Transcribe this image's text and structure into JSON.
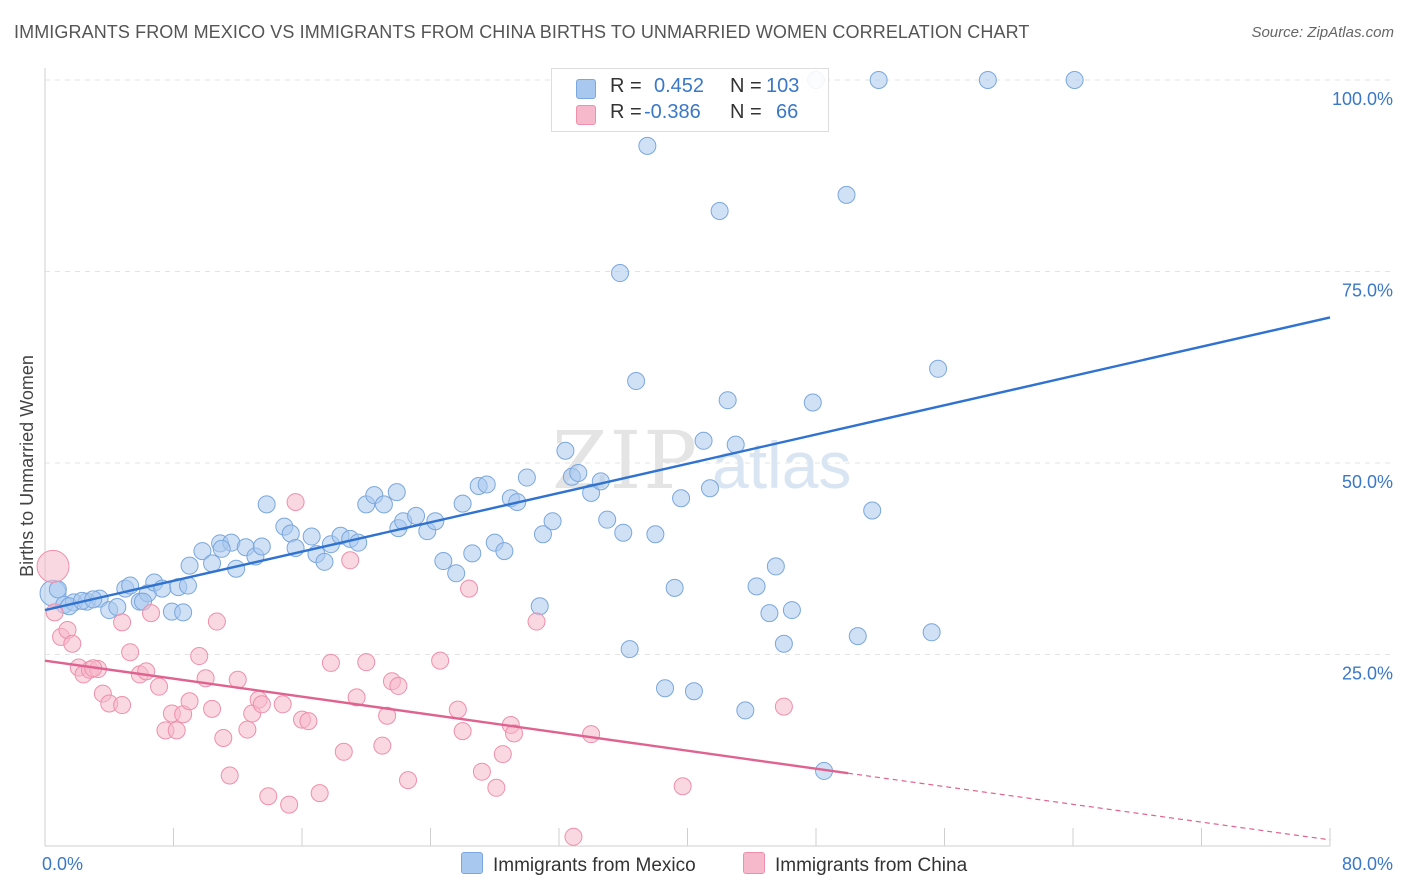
{
  "title": "IMMIGRANTS FROM MEXICO VS IMMIGRANTS FROM CHINA BIRTHS TO UNMARRIED WOMEN CORRELATION CHART",
  "source": "Source: ZipAtlas.com",
  "watermark": {
    "zip": "ZIP",
    "atlas": "atlas"
  },
  "legend": {
    "r_label": "R =",
    "n_label": "N =",
    "mexico": {
      "r": "0.452",
      "n": "103"
    },
    "china": {
      "r": "-0.386",
      "n": "66"
    }
  },
  "colors": {
    "mexico_fill": "#a9c8ef",
    "mexico_stroke": "#7aa7dc",
    "mexico_line": "#2f72d0",
    "china_fill": "#f6b8cb",
    "china_stroke": "#ee8fab",
    "china_line": "#e0628f",
    "tick_label": "#3a78c6",
    "grid": "#e3e3e3"
  },
  "chart_data": {
    "type": "scatter",
    "title": "IMMIGRANTS FROM MEXICO VS IMMIGRANTS FROM CHINA BIRTHS TO UNMARRIED WOMEN CORRELATION CHART",
    "xlabel": "",
    "ylabel": "Births to Unmarried Women",
    "xlim": [
      0,
      80
    ],
    "ylim": [
      0,
      100
    ],
    "x_tick_labels": [
      "0.0%",
      "80.0%"
    ],
    "y_ticks": [
      25,
      50,
      75,
      100
    ],
    "y_tick_labels": [
      "25.0%",
      "50.0%",
      "75.0%",
      "100.0%"
    ],
    "grid": true,
    "legend_position": "top-center",
    "series": [
      {
        "name": "Immigrants from Mexico",
        "color": "#a9c8ef",
        "trend": {
          "x": [
            0,
            80
          ],
          "y": [
            30.8,
            69.0
          ],
          "style": "solid"
        },
        "points": [
          [
            0.5,
            33.0
          ],
          [
            1.2,
            31.5
          ],
          [
            1.8,
            31.8
          ],
          [
            2.6,
            31.9
          ],
          [
            3.4,
            32.3
          ],
          [
            4.0,
            30.8
          ],
          [
            4.5,
            31.2
          ],
          [
            5.0,
            33.6
          ],
          [
            5.3,
            34.0
          ],
          [
            5.9,
            31.9
          ],
          [
            6.4,
            33.0
          ],
          [
            6.8,
            34.4
          ],
          [
            7.3,
            33.6
          ],
          [
            7.9,
            30.6
          ],
          [
            8.3,
            33.8
          ],
          [
            8.9,
            34.0
          ],
          [
            9.0,
            36.6
          ],
          [
            9.8,
            38.5
          ],
          [
            10.4,
            36.9
          ],
          [
            10.9,
            39.5
          ],
          [
            11.6,
            39.6
          ],
          [
            11.9,
            36.2
          ],
          [
            12.5,
            39.0
          ],
          [
            13.1,
            37.8
          ],
          [
            13.5,
            39.1
          ],
          [
            13.8,
            44.6
          ],
          [
            14.9,
            41.7
          ],
          [
            15.3,
            40.8
          ],
          [
            15.6,
            38.9
          ],
          [
            16.6,
            40.4
          ],
          [
            16.9,
            38.1
          ],
          [
            17.4,
            37.1
          ],
          [
            17.8,
            39.4
          ],
          [
            18.4,
            40.5
          ],
          [
            19.0,
            40.1
          ],
          [
            19.5,
            39.6
          ],
          [
            20.0,
            44.6
          ],
          [
            20.5,
            45.8
          ],
          [
            21.1,
            44.6
          ],
          [
            21.9,
            46.2
          ],
          [
            22.0,
            41.5
          ],
          [
            22.3,
            42.4
          ],
          [
            23.1,
            43.1
          ],
          [
            23.8,
            41.1
          ],
          [
            24.3,
            42.4
          ],
          [
            24.8,
            37.2
          ],
          [
            25.6,
            35.6
          ],
          [
            26.0,
            44.7
          ],
          [
            26.6,
            38.2
          ],
          [
            27.0,
            47.0
          ],
          [
            27.5,
            47.2
          ],
          [
            28.0,
            39.6
          ],
          [
            28.6,
            38.5
          ],
          [
            29.0,
            45.4
          ],
          [
            29.4,
            44.9
          ],
          [
            30.0,
            48.1
          ],
          [
            30.8,
            31.3
          ],
          [
            31.0,
            40.7
          ],
          [
            31.6,
            42.4
          ],
          [
            32.4,
            51.6
          ],
          [
            32.8,
            48.2
          ],
          [
            33.2,
            48.7
          ],
          [
            34.0,
            46.1
          ],
          [
            34.6,
            47.6
          ],
          [
            35.0,
            42.6
          ],
          [
            35.8,
            74.8
          ],
          [
            36.0,
            40.9
          ],
          [
            36.4,
            25.7
          ],
          [
            36.8,
            60.7
          ],
          [
            37.5,
            91.4
          ],
          [
            38.0,
            40.7
          ],
          [
            38.6,
            20.6
          ],
          [
            39.2,
            33.7
          ],
          [
            39.6,
            45.4
          ],
          [
            40.4,
            20.2
          ],
          [
            41.0,
            52.9
          ],
          [
            41.4,
            46.7
          ],
          [
            42.0,
            82.9
          ],
          [
            42.5,
            58.2
          ],
          [
            43.0,
            52.4
          ],
          [
            43.6,
            17.7
          ],
          [
            44.3,
            33.9
          ],
          [
            45.1,
            30.4
          ],
          [
            45.5,
            36.5
          ],
          [
            46.0,
            26.4
          ],
          [
            46.5,
            30.8
          ],
          [
            47.8,
            57.9
          ],
          [
            48.5,
            9.8
          ],
          [
            49.9,
            85.0
          ],
          [
            50.6,
            27.4
          ],
          [
            51.5,
            43.8
          ],
          [
            55.2,
            27.9
          ],
          [
            55.6,
            62.3
          ],
          [
            48.0,
            100.0
          ],
          [
            51.9,
            100.0
          ],
          [
            58.7,
            100.0
          ],
          [
            64.1,
            100.0
          ],
          [
            0.8,
            33.5
          ],
          [
            1.5,
            31.3
          ],
          [
            2.3,
            32.0
          ],
          [
            3.0,
            32.2
          ],
          [
            6.1,
            31.9
          ],
          [
            8.6,
            30.5
          ],
          [
            11.0,
            38.8
          ]
        ]
      },
      {
        "name": "Immigrants from China",
        "color": "#f6b8cb",
        "trend": {
          "x": [
            0,
            50
          ],
          "y": [
            24.2,
            9.5
          ],
          "style": "solid",
          "dashed_extension": {
            "x": [
              50,
              80
            ],
            "y": [
              9.5,
              0.8
            ]
          }
        },
        "points": [
          [
            0.5,
            36.5
          ],
          [
            0.6,
            30.5
          ],
          [
            1.0,
            27.3
          ],
          [
            1.4,
            28.2
          ],
          [
            1.7,
            26.4
          ],
          [
            2.1,
            23.3
          ],
          [
            2.4,
            22.4
          ],
          [
            2.8,
            23.0
          ],
          [
            3.3,
            23.1
          ],
          [
            3.6,
            19.9
          ],
          [
            4.0,
            18.6
          ],
          [
            4.8,
            18.4
          ],
          [
            4.8,
            29.2
          ],
          [
            5.3,
            25.3
          ],
          [
            5.9,
            22.4
          ],
          [
            6.3,
            22.8
          ],
          [
            6.6,
            30.4
          ],
          [
            7.1,
            20.8
          ],
          [
            7.5,
            15.1
          ],
          [
            7.9,
            17.3
          ],
          [
            8.2,
            15.1
          ],
          [
            8.6,
            17.2
          ],
          [
            9.0,
            18.9
          ],
          [
            9.6,
            24.8
          ],
          [
            10.0,
            21.9
          ],
          [
            10.4,
            17.9
          ],
          [
            10.7,
            29.3
          ],
          [
            11.1,
            14.1
          ],
          [
            11.5,
            9.2
          ],
          [
            12.0,
            21.7
          ],
          [
            12.6,
            15.2
          ],
          [
            12.9,
            17.3
          ],
          [
            13.3,
            19.1
          ],
          [
            13.5,
            18.5
          ],
          [
            13.9,
            6.5
          ],
          [
            14.8,
            18.5
          ],
          [
            15.2,
            5.4
          ],
          [
            15.6,
            44.9
          ],
          [
            16.0,
            16.5
          ],
          [
            16.4,
            16.3
          ],
          [
            17.1,
            6.9
          ],
          [
            17.8,
            23.9
          ],
          [
            18.6,
            12.3
          ],
          [
            19.0,
            37.3
          ],
          [
            19.4,
            19.4
          ],
          [
            20.0,
            24.0
          ],
          [
            21.0,
            13.1
          ],
          [
            21.3,
            17.0
          ],
          [
            21.6,
            21.5
          ],
          [
            22.0,
            20.9
          ],
          [
            22.6,
            8.6
          ],
          [
            24.6,
            24.2
          ],
          [
            25.7,
            17.8
          ],
          [
            26.0,
            15.0
          ],
          [
            26.4,
            33.6
          ],
          [
            27.2,
            9.7
          ],
          [
            28.1,
            7.6
          ],
          [
            28.5,
            12.0
          ],
          [
            29.0,
            15.8
          ],
          [
            29.2,
            14.7
          ],
          [
            30.6,
            29.3
          ],
          [
            32.9,
            1.2
          ],
          [
            34.0,
            14.6
          ],
          [
            39.7,
            7.8
          ],
          [
            46.0,
            18.2
          ],
          [
            3.0,
            23.2
          ]
        ]
      }
    ]
  },
  "bottom_legend": {
    "mexico": "Immigrants from Mexico",
    "china": "Immigrants from China"
  }
}
